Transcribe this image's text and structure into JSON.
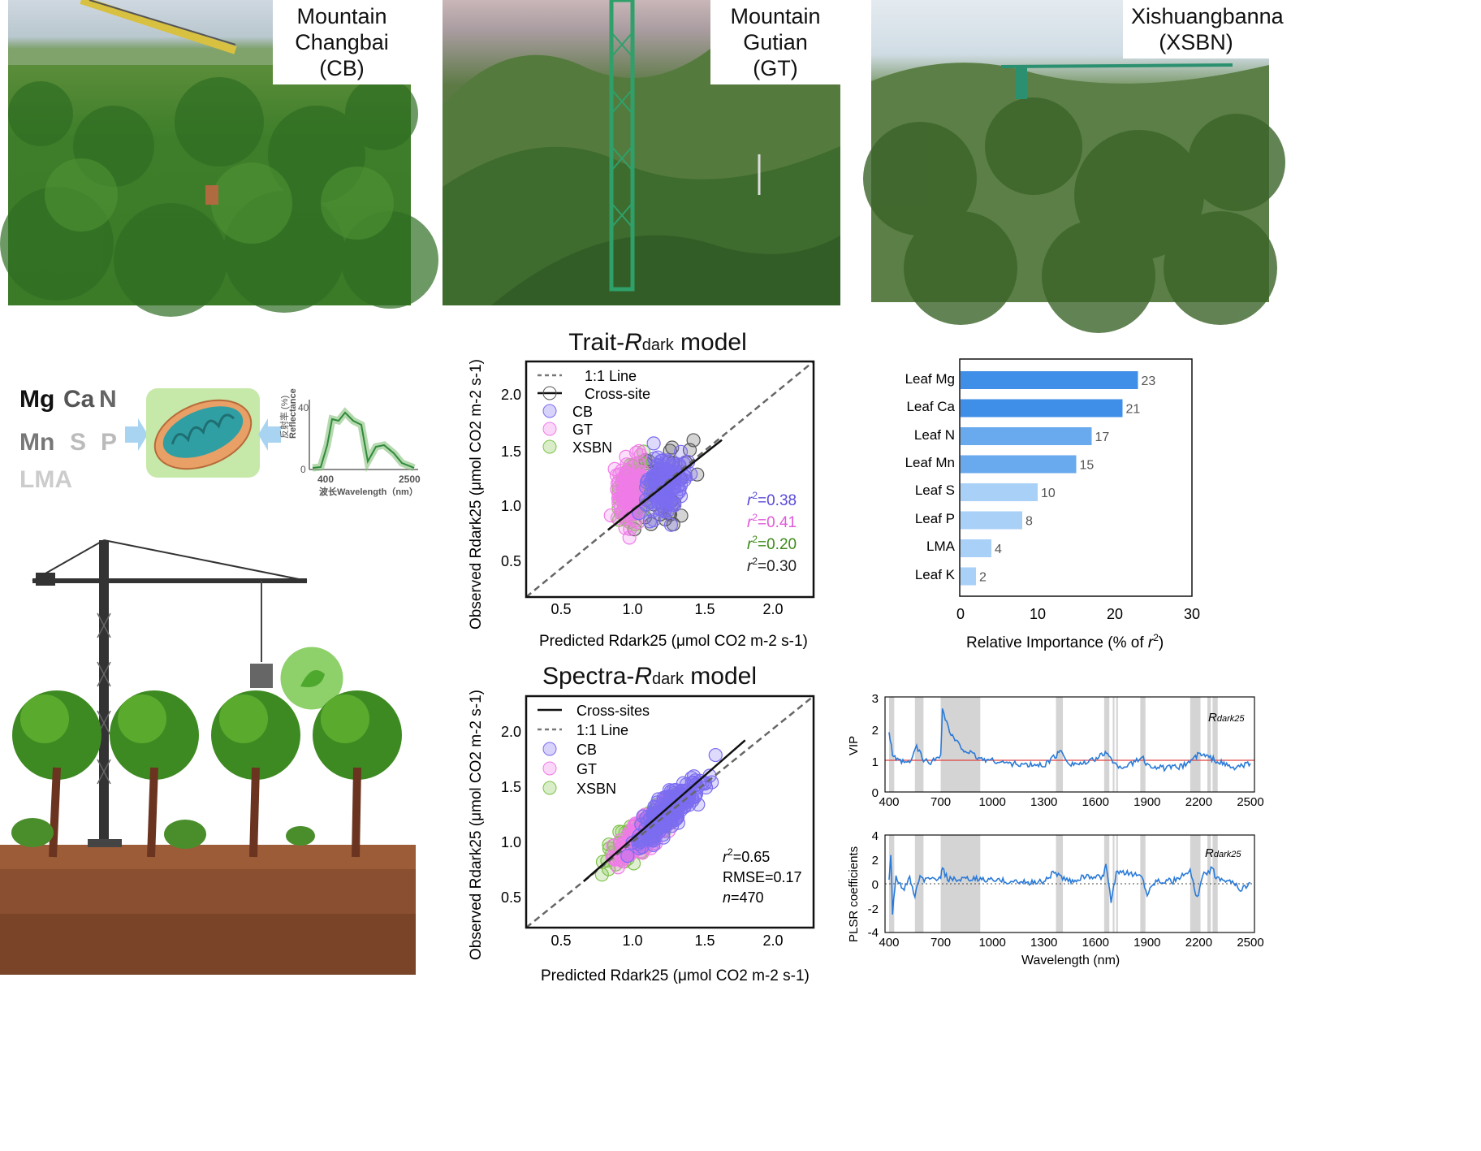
{
  "photos": [
    {
      "label_line1": "Mountain",
      "label_line2": "Changbai (CB)"
    },
    {
      "label_line1": "Mountain",
      "label_line2": "Gutian (GT)"
    },
    {
      "label_line1": "Xishuangbanna",
      "label_line2": "(XSBN)"
    }
  ],
  "elements": {
    "row1": [
      "Mg",
      "Ca",
      "N"
    ],
    "row2": [
      "Mn",
      "S",
      "P"
    ],
    "row3": "LMA"
  },
  "spectrum_inset": {
    "ylabel": "反射率 (%)",
    "ylabel2": "Reflectance",
    "ytick_top": "40",
    "ytick_zero": "0",
    "xtick_left": "400",
    "xtick_right": "2500",
    "xlabel": "波长Wavelength（nm）"
  },
  "colors": {
    "cb": "#7b6cf0",
    "gt": "#f07be8",
    "xsbn": "#7fc24a",
    "cross": "#555555",
    "bar_dark": "#3f8fe8",
    "bar_light": "#a9d0f7",
    "vip_line": "#2a7ad8",
    "threshold": "#e04040"
  },
  "trait_model": {
    "title_pre": "Trait-",
    "title_R": "R",
    "title_sub": "dark",
    "title_post": " model",
    "legend": [
      "1:1 Line",
      "Cross-site",
      "CB",
      "GT",
      "XSBN"
    ],
    "xlabel": "Predicted Rdark25 (μmol CO2 m-2 s-1)",
    "ylabel": "Observed Rdark25 (μmol CO2 m-2 s-1)",
    "xticks": [
      "0.5",
      "1.0",
      "1.5",
      "2.0"
    ],
    "yticks": [
      "0.5",
      "1.0",
      "1.5",
      "2.0"
    ],
    "stats": [
      {
        "label": "r2=0.38",
        "r": "r",
        "exp": "2",
        "val": "=0.38"
      },
      {
        "label": "r2=0.41",
        "r": "r",
        "exp": "2",
        "val": "=0.41"
      },
      {
        "label": "r2=0.20",
        "r": "r",
        "exp": "2",
        "val": "=0.20"
      },
      {
        "label": "r2=0.30",
        "r": "r",
        "exp": "2",
        "val": "=0.30"
      }
    ]
  },
  "spectra_model": {
    "title_pre": "Spectra-",
    "title_R": "R",
    "title_sub": "dark",
    "title_post": " model",
    "legend": [
      "Cross-sites",
      "1:1 Line",
      "CB",
      "GT",
      "XSBN"
    ],
    "xlabel": "Predicted Rdark25 (μmol CO2 m-2 s-1)",
    "ylabel": "Observed Rdark25 (μmol CO2 m-2 s-1)",
    "xticks": [
      "0.5",
      "1.0",
      "1.5",
      "2.0"
    ],
    "yticks": [
      "0.5",
      "1.0",
      "1.5",
      "2.0"
    ],
    "stats": {
      "r2": "=0.65",
      "r": "r",
      "exp": "2",
      "rmse": "RMSE=0.17",
      "n_lbl": "n",
      "n_val": "=470"
    }
  },
  "chart_data": [
    {
      "type": "scatter",
      "title": "Trait-Rdark model",
      "xlabel": "Predicted Rdark25 (μmol CO2 m-2 s-1)",
      "ylabel": "Observed Rdark25 (μmol CO2 m-2 s-1)",
      "xlim": [
        0.2,
        2.3
      ],
      "ylim": [
        0.2,
        2.3
      ],
      "series": [
        {
          "name": "CB",
          "center": [
            1.2,
            1.2
          ],
          "r2": 0.38
        },
        {
          "name": "GT",
          "center": [
            0.95,
            1.15
          ],
          "r2": 0.41
        },
        {
          "name": "XSBN",
          "center": [
            1.0,
            1.15
          ],
          "r2": 0.2
        },
        {
          "name": "Cross-site",
          "fit": [
            [
              0.8,
              0.8
            ],
            [
              1.63,
              1.6
            ]
          ],
          "r2": 0.3
        }
      ]
    },
    {
      "type": "bar",
      "categories": [
        "Leaf Mg",
        "Leaf Ca",
        "Leaf N",
        "Leaf Mn",
        "Leaf S",
        "Leaf P",
        "LMA",
        "Leaf K"
      ],
      "values": [
        23,
        21,
        17,
        15,
        10,
        8,
        4,
        2
      ],
      "xlabel": "Relative Importance (% of r2)",
      "xlim": [
        0,
        30
      ],
      "xticks": [
        "0",
        "10",
        "20",
        "30"
      ]
    },
    {
      "type": "scatter",
      "title": "Spectra-Rdark model",
      "xlabel": "Predicted Rdark25 (μmol CO2 m-2 s-1)",
      "ylabel": "Observed Rdark25 (μmol CO2 m-2 s-1)",
      "xlim": [
        0.2,
        2.3
      ],
      "ylim": [
        0.2,
        2.3
      ],
      "series": [
        {
          "name": "Cross-sites",
          "fit": [
            [
              0.62,
              0.62
            ],
            [
              1.8,
              1.9
            ]
          ]
        },
        {
          "name": "CB"
        },
        {
          "name": "GT"
        },
        {
          "name": "XSBN"
        }
      ],
      "r2": 0.65,
      "rmse": 0.17,
      "n": 470
    },
    {
      "type": "line",
      "ylabel": "VIP",
      "annotation": "Rdark25",
      "xlim": [
        400,
        2500
      ],
      "ylim": [
        0,
        3
      ],
      "xticks": [
        "400",
        "700",
        "1000",
        "1300",
        "1600",
        "1900",
        "2200",
        "2500"
      ],
      "yticks": [
        "0",
        "1",
        "2",
        "3"
      ],
      "threshold": 1,
      "shaded_bands": [
        [
          400,
          430
        ],
        [
          550,
          600
        ],
        [
          700,
          930
        ],
        [
          1370,
          1410
        ],
        [
          1650,
          1680
        ],
        [
          1700,
          1710
        ],
        [
          1720,
          1730
        ],
        [
          1860,
          1890
        ],
        [
          2150,
          2210
        ],
        [
          2250,
          2270
        ],
        [
          2280,
          2310
        ]
      ],
      "x": [
        400,
        420,
        440,
        480,
        520,
        560,
        600,
        650,
        700,
        710,
        760,
        820,
        880,
        930,
        1000,
        1100,
        1200,
        1300,
        1380,
        1400,
        1450,
        1550,
        1650,
        1670,
        1700,
        1750,
        1800,
        1870,
        1900,
        2000,
        2100,
        2180,
        2200,
        2260,
        2300,
        2400,
        2500
      ],
      "y": [
        1.9,
        1.2,
        1.0,
        0.95,
        0.9,
        1.45,
        1.0,
        0.95,
        1.2,
        2.6,
        1.8,
        1.4,
        1.2,
        1.05,
        1.0,
        0.9,
        0.85,
        0.85,
        1.2,
        1.3,
        0.9,
        0.9,
        1.2,
        1.3,
        0.9,
        0.8,
        0.85,
        1.1,
        0.85,
        0.75,
        0.8,
        1.1,
        1.2,
        1.1,
        1.0,
        0.75,
        0.9
      ]
    },
    {
      "type": "line",
      "ylabel": "PLSR coefficients",
      "xlabel": "Wavelength (nm)",
      "annotation": "Rdark25",
      "xlim": [
        400,
        2500
      ],
      "ylim": [
        -4,
        4
      ],
      "xticks": [
        "400",
        "700",
        "1000",
        "1300",
        "1600",
        "1900",
        "2200",
        "2500"
      ],
      "yticks": [
        "-4",
        "-2",
        "0",
        "2",
        "4"
      ],
      "shaded_bands": [
        [
          400,
          430
        ],
        [
          550,
          600
        ],
        [
          700,
          930
        ],
        [
          1370,
          1410
        ],
        [
          1650,
          1680
        ],
        [
          1700,
          1710
        ],
        [
          1720,
          1730
        ],
        [
          1860,
          1890
        ],
        [
          2150,
          2210
        ],
        [
          2250,
          2270
        ],
        [
          2280,
          2310
        ]
      ],
      "x": [
        400,
        410,
        420,
        440,
        480,
        520,
        550,
        580,
        620,
        700,
        710,
        740,
        800,
        900,
        1000,
        1100,
        1200,
        1300,
        1360,
        1400,
        1450,
        1550,
        1640,
        1660,
        1690,
        1720,
        1800,
        1870,
        1900,
        1950,
        2050,
        2150,
        2190,
        2230,
        2280,
        2300,
        2380,
        2450,
        2500
      ],
      "y": [
        0.5,
        2.6,
        -2.4,
        0.6,
        -0.5,
        0.4,
        -1.0,
        0.5,
        0.3,
        0.5,
        1.2,
        0.4,
        0.3,
        0.4,
        0.3,
        0.2,
        0.1,
        0.2,
        1.0,
        0.5,
        0.2,
        0.6,
        0.5,
        1.5,
        -1.5,
        0.8,
        0.9,
        0.6,
        -0.8,
        0.3,
        0.2,
        1.0,
        -1.2,
        0.8,
        1.2,
        0.5,
        0.3,
        -0.5,
        0.1
      ]
    }
  ],
  "bar_labels": [
    "Leaf Mg",
    "Leaf Ca",
    "Leaf N",
    "Leaf Mn",
    "Leaf S",
    "Leaf P",
    "LMA",
    "Leaf K"
  ],
  "bar_values": [
    "23",
    "21",
    "17",
    "15",
    "10",
    "8",
    "4",
    "2"
  ],
  "bar_xticks": [
    "0",
    "10",
    "20",
    "30"
  ],
  "bar_xlabel_pre": "Relative Importance (% of ",
  "bar_xlabel_r": "r",
  "bar_xlabel_exp": "2",
  "bar_xlabel_post": ")",
  "vip": {
    "ylabel": "VIP",
    "yticks": [
      "3",
      "2",
      "1",
      "0"
    ],
    "xticks": [
      "400",
      "700",
      "1000",
      "1300",
      "1600",
      "1900",
      "2200",
      "2500"
    ],
    "annotation_R": "R",
    "annotation_sub": "dark25"
  },
  "plsr": {
    "ylabel": "PLSR coefficients",
    "yticks": [
      "4",
      "2",
      "0",
      "-2",
      "-4"
    ],
    "xticks": [
      "400",
      "700",
      "1000",
      "1300",
      "1600",
      "1900",
      "2200",
      "2500"
    ],
    "xlabel": "Wavelength (nm)",
    "annotation_R": "R",
    "annotation_sub": "dark25"
  }
}
